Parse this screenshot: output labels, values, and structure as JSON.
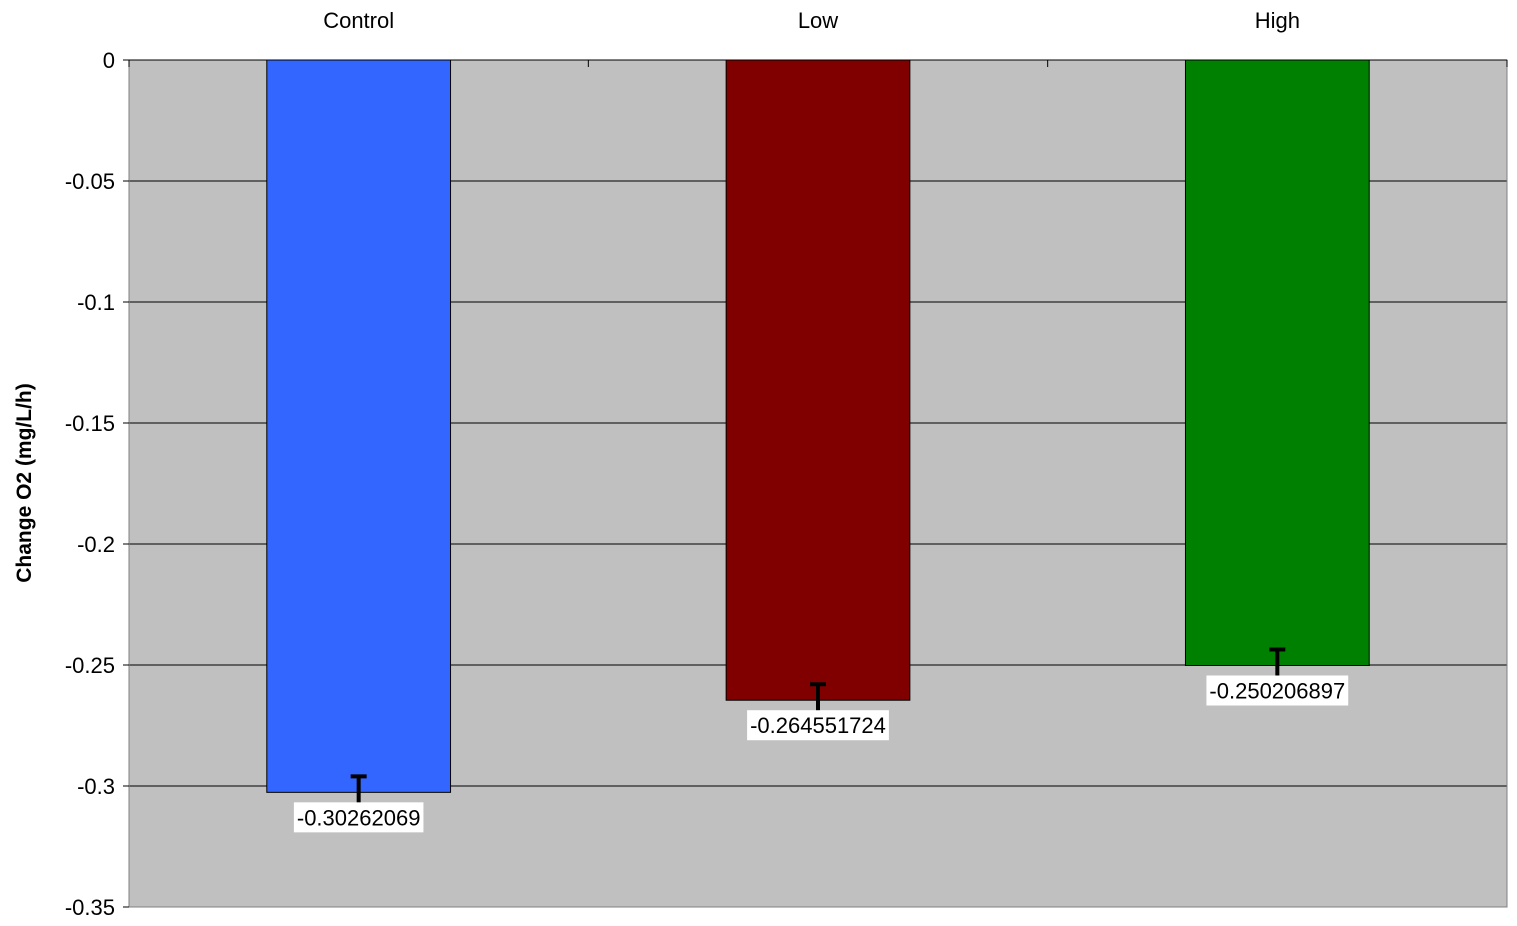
{
  "chart_data": {
    "type": "bar",
    "title": "",
    "xlabel": "",
    "ylabel": "Change O2 (mg/L/h)",
    "categories": [
      "Control",
      "Low",
      "High"
    ],
    "values": [
      -0.30262069,
      -0.264551724,
      -0.250206897
    ],
    "error_bars": [
      0.0066,
      0.0066,
      0.0066
    ],
    "data_labels": [
      "-0.30262069",
      "-0.264551724",
      "-0.250206897"
    ],
    "colors": [
      "#3366FF",
      "#800000",
      "#008000"
    ],
    "ylim": [
      -0.35,
      0
    ],
    "yticks": [
      0,
      -0.05,
      -0.1,
      -0.15,
      -0.2,
      -0.25,
      -0.3,
      -0.35
    ],
    "ytick_labels": [
      "0",
      "-0.05",
      "-0.1",
      "-0.15",
      "-0.2",
      "-0.25",
      "-0.3",
      "-0.35"
    ],
    "x_axis_position": "top",
    "plot_background": "#C0C0C0",
    "grid": true,
    "legend": "none"
  }
}
